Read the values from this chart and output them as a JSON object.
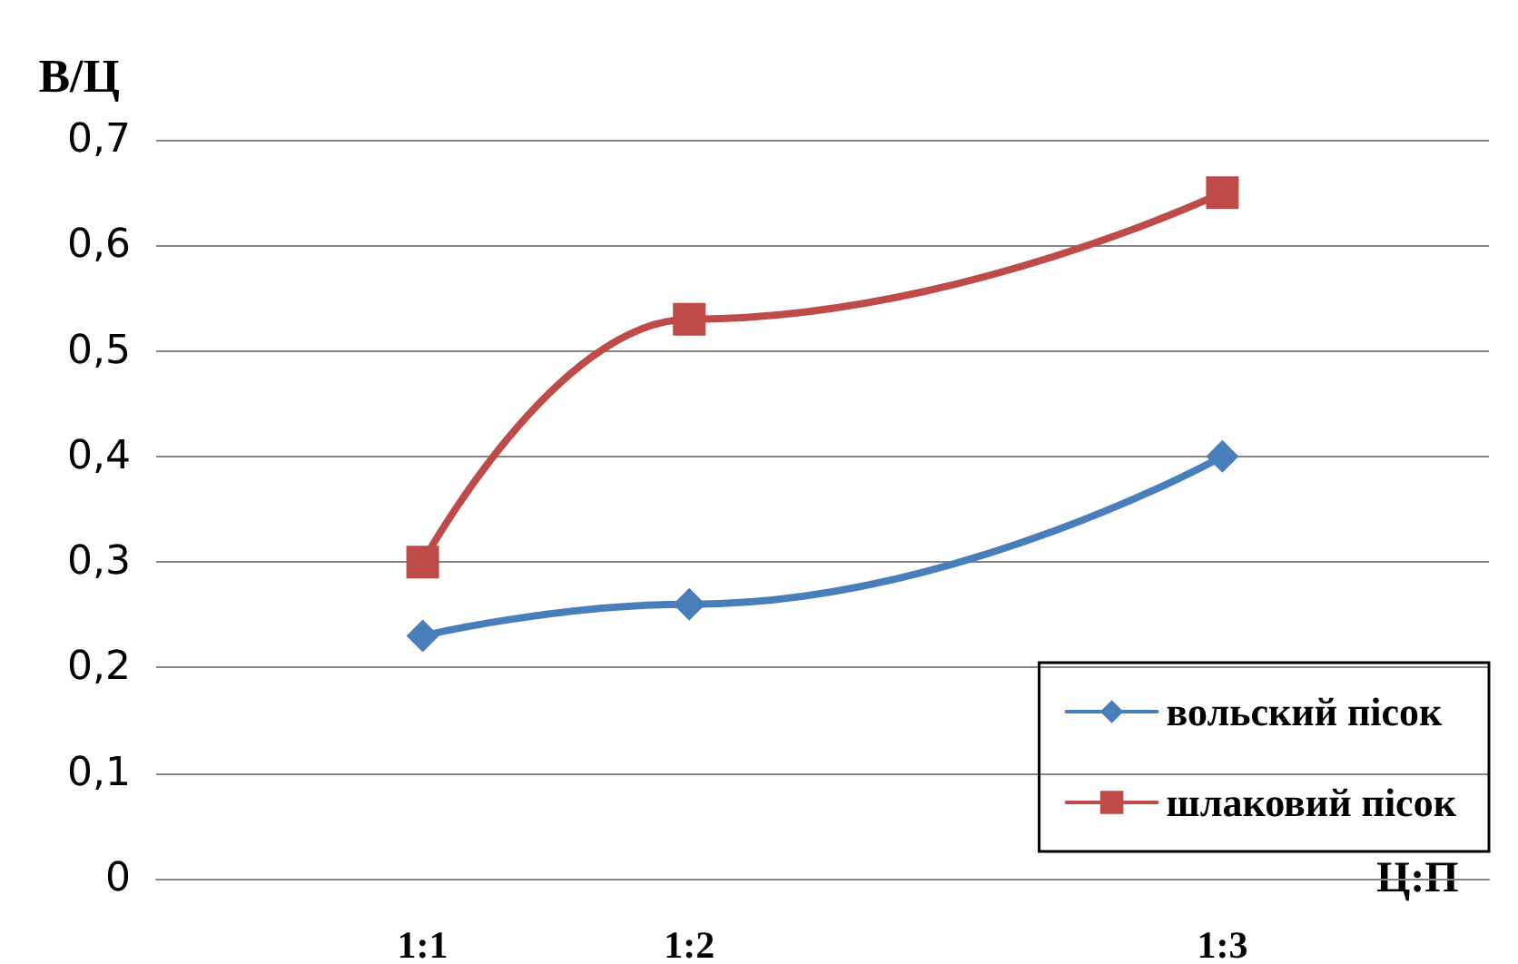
{
  "chart_data": {
    "type": "line",
    "xlabel": "Ц:П",
    "ylabel": "В/Ц",
    "categories": [
      null,
      "1:1",
      "1:2",
      null,
      "1:3",
      null
    ],
    "ylim": [
      0,
      0.7
    ],
    "yticks": [
      {
        "value": 0,
        "label": "0"
      },
      {
        "value": 0.1,
        "label": "0,1"
      },
      {
        "value": 0.2,
        "label": "0,2"
      },
      {
        "value": 0.3,
        "label": "0,3"
      },
      {
        "value": 0.4,
        "label": "0,4"
      },
      {
        "value": 0.5,
        "label": "0,5"
      },
      {
        "value": 0.6,
        "label": "0,6"
      },
      {
        "value": 0.7,
        "label": "0,7"
      }
    ],
    "series": [
      {
        "name": "вольский пісок",
        "color": "#4a7ebb",
        "marker": "diamond",
        "values": [
          null,
          0.23,
          0.26,
          null,
          0.4,
          null
        ]
      },
      {
        "name": "шлаковий пісок",
        "color": "#be4b48",
        "marker": "square",
        "values": [
          null,
          0.3,
          0.53,
          null,
          0.65,
          null
        ]
      }
    ],
    "grid": "y",
    "legend": "bottom right",
    "line_style": "solid"
  }
}
